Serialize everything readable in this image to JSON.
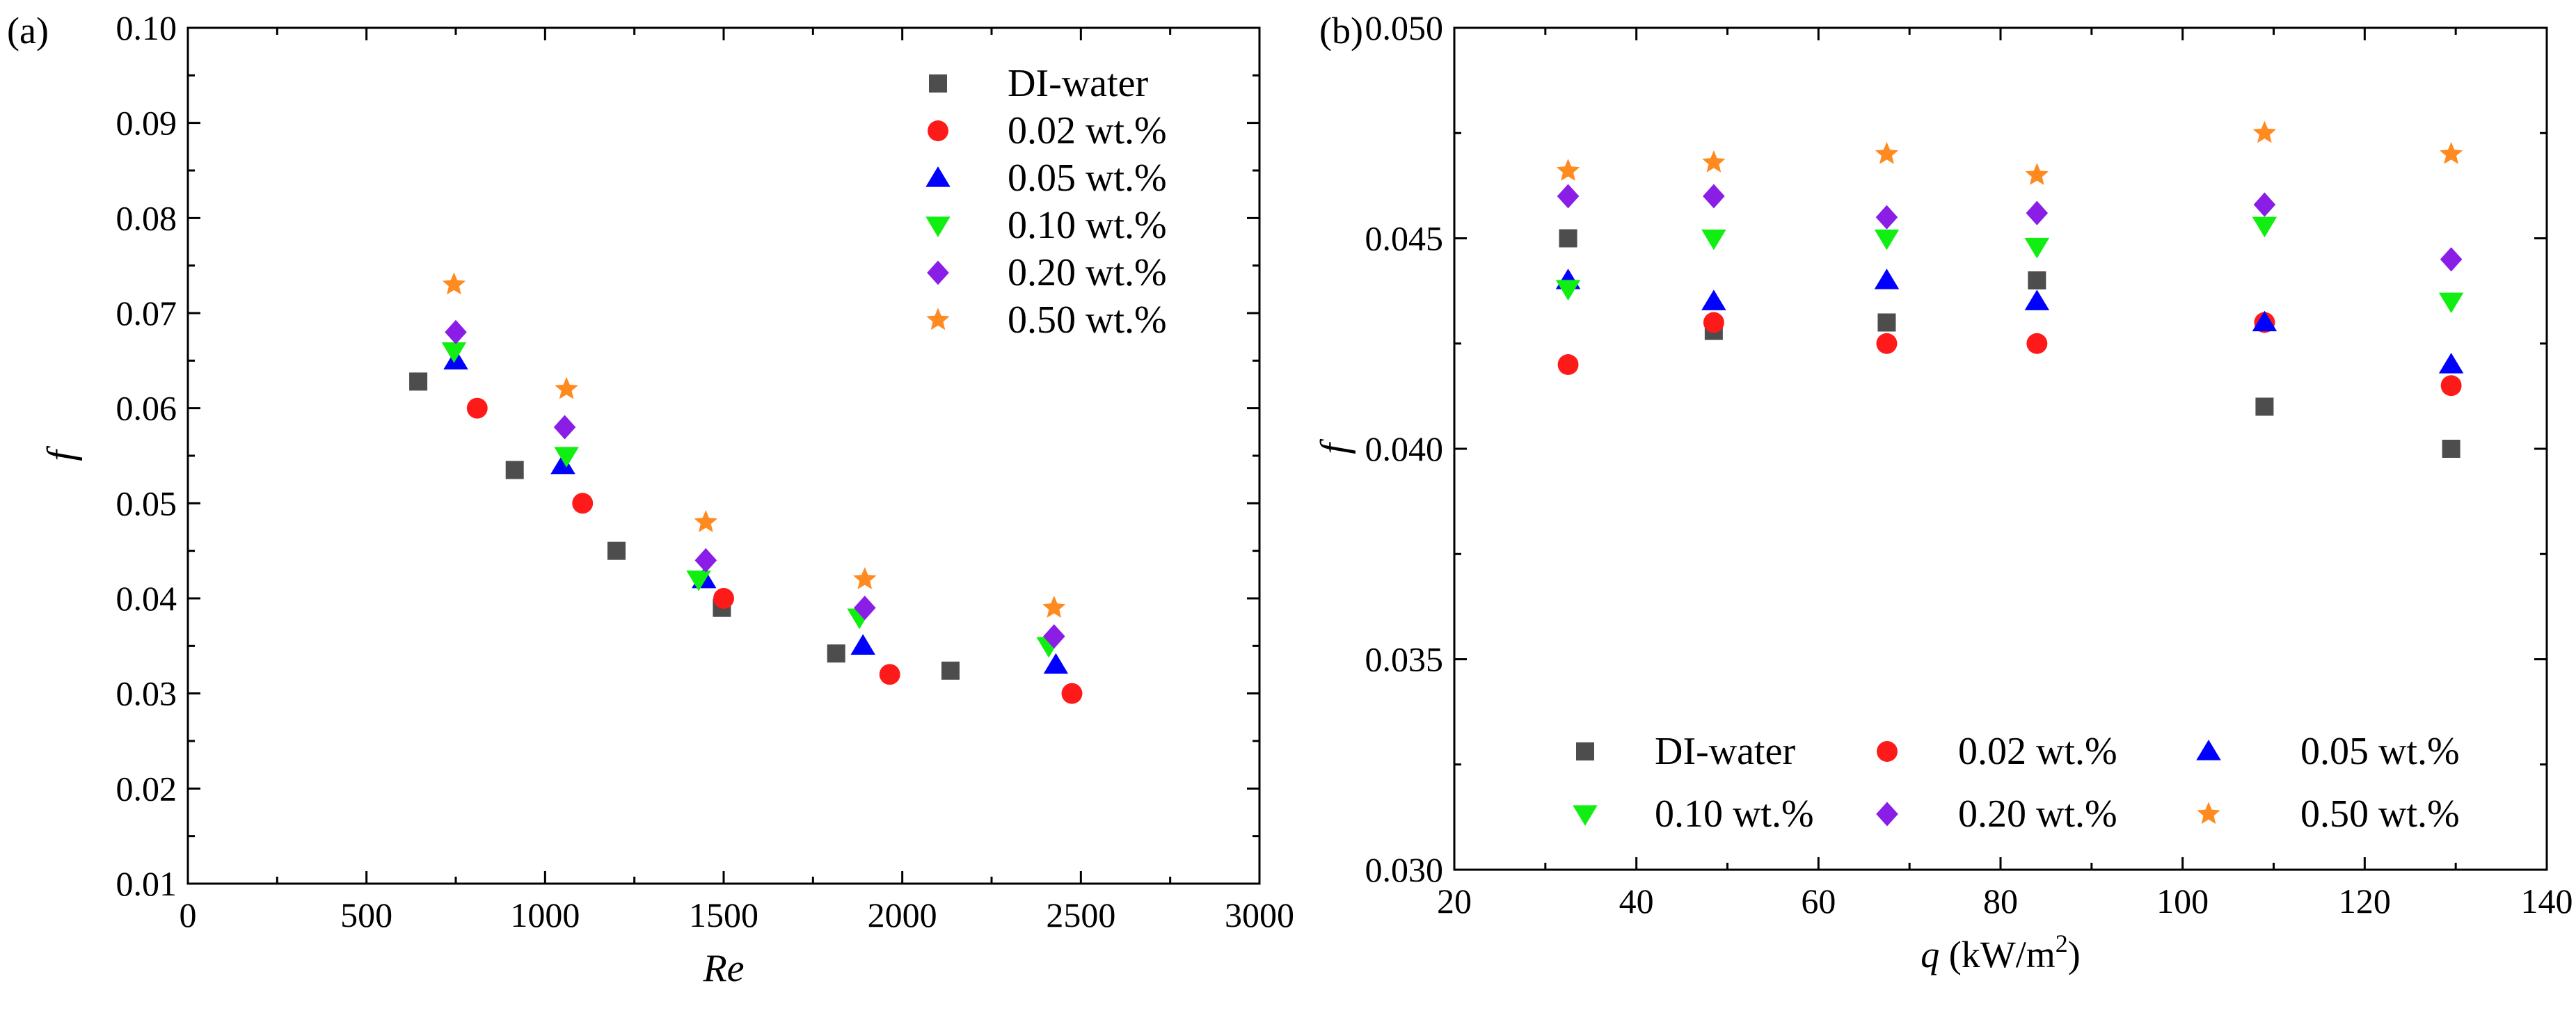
{
  "colors": {
    "DI-water": "#4d4d4d",
    "0.02 wt.%": "#ff1a1a",
    "0.05 wt.%": "#0000ff",
    "0.10 wt.%": "#11ee11",
    "0.20 wt.%": "#8a1ee6",
    "0.50 wt.%": "#ff8a1f"
  },
  "chart_data": [
    {
      "type": "scatter",
      "panel_label": "(a)",
      "xlabel": "Re",
      "ylabel": "f",
      "xlim": [
        0,
        3000
      ],
      "ylim": [
        0.01,
        0.1
      ],
      "xticks": [
        "0",
        "500",
        "1000",
        "1500",
        "2000",
        "2500",
        "3000"
      ],
      "yticks": [
        "0.01",
        "0.02",
        "0.03",
        "0.04",
        "0.05",
        "0.06",
        "0.07",
        "0.08",
        "0.09",
        "0.10"
      ],
      "legend_position": "top-right",
      "series": [
        {
          "name": "DI-water",
          "marker": "square",
          "x": [
            645,
            915,
            1200,
            1495,
            1815,
            2135
          ],
          "y": [
            0.0628,
            0.0535,
            0.045,
            0.039,
            0.0342,
            0.0324
          ]
        },
        {
          "name": "0.02 wt.%",
          "marker": "circle",
          "x": [
            810,
            1105,
            1500,
            1965,
            2475
          ],
          "y": [
            0.06,
            0.05,
            0.04,
            0.032,
            0.03
          ]
        },
        {
          "name": "0.05 wt.%",
          "marker": "triangle-up",
          "x": [
            750,
            1050,
            1445,
            1890,
            2430
          ],
          "y": [
            0.065,
            0.054,
            0.042,
            0.035,
            0.033
          ]
        },
        {
          "name": "0.10 wt.%",
          "marker": "triangle-down",
          "x": [
            745,
            1060,
            1430,
            1880,
            2410
          ],
          "y": [
            0.066,
            0.055,
            0.042,
            0.038,
            0.035
          ]
        },
        {
          "name": "0.20 wt.%",
          "marker": "diamond",
          "x": [
            750,
            1055,
            1450,
            1895,
            2425
          ],
          "y": [
            0.068,
            0.058,
            0.044,
            0.039,
            0.036
          ]
        },
        {
          "name": "0.50 wt.%",
          "marker": "star",
          "x": [
            745,
            1060,
            1450,
            1895,
            2425
          ],
          "y": [
            0.073,
            0.062,
            0.048,
            0.042,
            0.039
          ]
        }
      ]
    },
    {
      "type": "scatter",
      "panel_label": "(b)",
      "xlabel": "q (kW/m2)",
      "ylabel": "f",
      "xlim": [
        20,
        140
      ],
      "ylim": [
        0.03,
        0.05
      ],
      "xticks": [
        "20",
        "40",
        "60",
        "80",
        "100",
        "120",
        "140"
      ],
      "yticks": [
        "0.030",
        "0.035",
        "0.040",
        "0.045",
        "0.050"
      ],
      "legend_position": "bottom",
      "series": [
        {
          "name": "DI-water",
          "marker": "square",
          "x": [
            32.5,
            48.5,
            67.5,
            84,
            109,
            129.5
          ],
          "y": [
            0.045,
            0.0428,
            0.043,
            0.044,
            0.041,
            0.04
          ]
        },
        {
          "name": "0.02 wt.%",
          "marker": "circle",
          "x": [
            32.5,
            48.5,
            67.5,
            84,
            109,
            129.5
          ],
          "y": [
            0.042,
            0.043,
            0.0425,
            0.0425,
            0.043,
            0.0415
          ]
        },
        {
          "name": "0.05 wt.%",
          "marker": "triangle-up",
          "x": [
            32.5,
            48.5,
            67.5,
            84,
            109,
            129.5
          ],
          "y": [
            0.044,
            0.0435,
            0.044,
            0.0435,
            0.043,
            0.042
          ]
        },
        {
          "name": "0.10 wt.%",
          "marker": "triangle-down",
          "x": [
            32.5,
            48.5,
            67.5,
            84,
            109,
            129.5
          ],
          "y": [
            0.0438,
            0.045,
            0.045,
            0.0448,
            0.0453,
            0.0435
          ]
        },
        {
          "name": "0.20 wt.%",
          "marker": "diamond",
          "x": [
            32.5,
            48.5,
            67.5,
            84,
            109,
            129.5
          ],
          "y": [
            0.046,
            0.046,
            0.0455,
            0.0456,
            0.0458,
            0.0445
          ]
        },
        {
          "name": "0.50 wt.%",
          "marker": "star",
          "x": [
            32.5,
            48.5,
            67.5,
            84,
            109,
            129.5
          ],
          "y": [
            0.0466,
            0.0468,
            0.047,
            0.0465,
            0.0475,
            0.047
          ]
        }
      ]
    }
  ]
}
